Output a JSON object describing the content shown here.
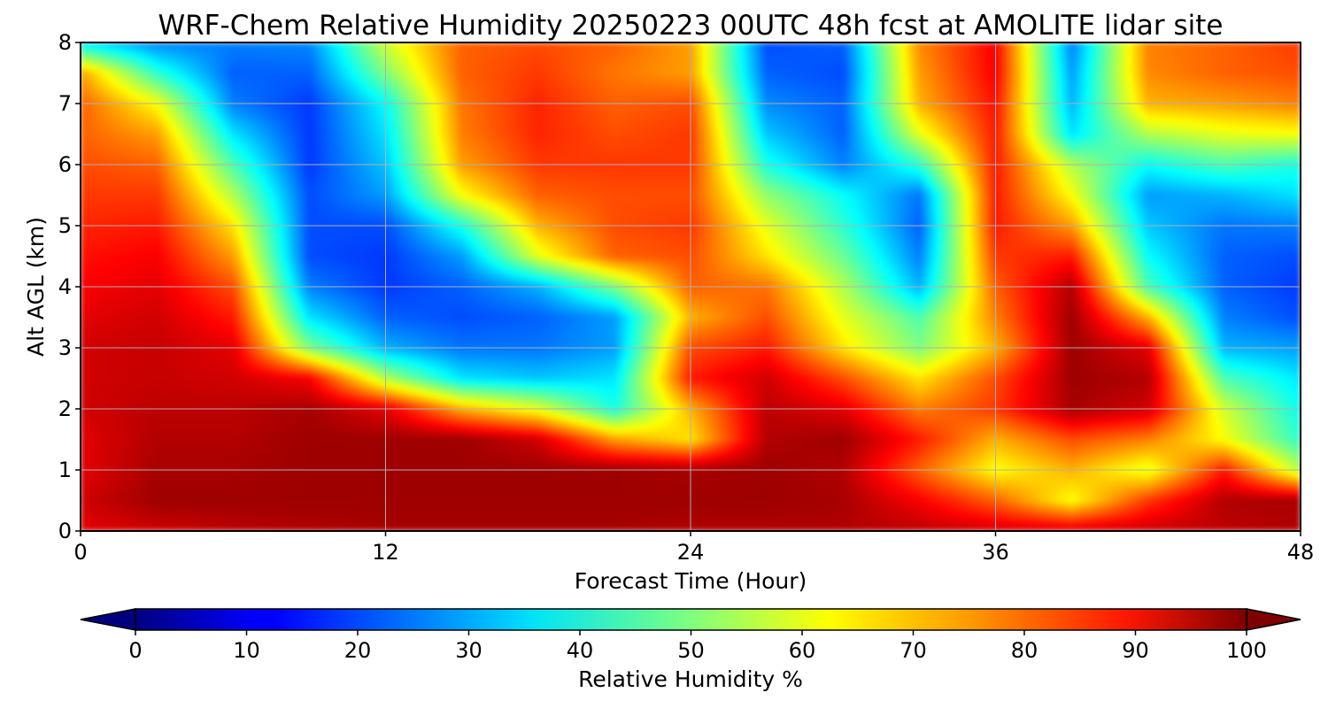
{
  "chart_data": {
    "type": "heatmap",
    "title": "WRF-Chem Relative Humidity 20250223 00UTC 48h fcst at AMOLITE lidar site",
    "xlabel": "Forecast Time (Hour)",
    "ylabel": "Alt AGL (km)",
    "xlim": [
      0,
      48
    ],
    "ylim": [
      0,
      8
    ],
    "xticks": [
      0,
      12,
      24,
      36,
      48
    ],
    "yticks": [
      0,
      1,
      2,
      3,
      4,
      5,
      6,
      7,
      8
    ],
    "grid": true,
    "x": [
      0,
      3,
      6,
      9,
      12,
      15,
      18,
      21,
      24,
      27,
      30,
      33,
      36,
      39,
      42,
      45,
      48
    ],
    "y": [
      0,
      0.5,
      1,
      1.5,
      2,
      2.5,
      3,
      3.5,
      4,
      4.5,
      5,
      5.5,
      6,
      6.5,
      7,
      7.5,
      8
    ],
    "z": [
      [
        90,
        92,
        94,
        95,
        96,
        96,
        96,
        96,
        95,
        95,
        95,
        94,
        92,
        92,
        93,
        94,
        95
      ],
      [
        92,
        97,
        97,
        97,
        97,
        97,
        97,
        97,
        97,
        97,
        96,
        88,
        78,
        62,
        82,
        95,
        96
      ],
      [
        90,
        96,
        96,
        97,
        97,
        97,
        97,
        97,
        96,
        97,
        95,
        78,
        62,
        70,
        60,
        85,
        55
      ],
      [
        90,
        95,
        95,
        97,
        97,
        97,
        92,
        72,
        65,
        95,
        97,
        85,
        70,
        80,
        75,
        62,
        42
      ],
      [
        92,
        94,
        94,
        96,
        90,
        70,
        60,
        40,
        70,
        94,
        90,
        75,
        82,
        96,
        92,
        58,
        38
      ],
      [
        92,
        93,
        92,
        88,
        55,
        35,
        32,
        35,
        85,
        92,
        80,
        65,
        80,
        97,
        95,
        45,
        35
      ],
      [
        92,
        93,
        90,
        50,
        30,
        24,
        24,
        28,
        80,
        85,
        65,
        50,
        70,
        97,
        90,
        30,
        28
      ],
      [
        90,
        92,
        85,
        35,
        22,
        20,
        22,
        28,
        70,
        80,
        60,
        45,
        75,
        97,
        70,
        25,
        20
      ],
      [
        88,
        90,
        80,
        25,
        18,
        22,
        30,
        50,
        78,
        76,
        55,
        30,
        78,
        95,
        45,
        22,
        18
      ],
      [
        86,
        88,
        72,
        20,
        18,
        28,
        60,
        78,
        80,
        65,
        48,
        25,
        82,
        85,
        38,
        22,
        20
      ],
      [
        84,
        85,
        65,
        20,
        20,
        40,
        70,
        80,
        82,
        60,
        42,
        22,
        85,
        72,
        32,
        24,
        25
      ],
      [
        82,
        82,
        55,
        20,
        28,
        62,
        78,
        80,
        80,
        52,
        38,
        24,
        85,
        62,
        28,
        30,
        35
      ],
      [
        80,
        78,
        45,
        18,
        32,
        72,
        82,
        82,
        82,
        40,
        25,
        42,
        85,
        55,
        38,
        45,
        40
      ],
      [
        78,
        72,
        35,
        18,
        35,
        75,
        84,
        80,
        82,
        32,
        22,
        60,
        85,
        35,
        55,
        60,
        62
      ],
      [
        78,
        62,
        25,
        18,
        38,
        76,
        84,
        78,
        80,
        26,
        22,
        70,
        86,
        30,
        70,
        72,
        75
      ],
      [
        72,
        42,
        22,
        22,
        50,
        78,
        82,
        76,
        72,
        22,
        20,
        72,
        88,
        28,
        74,
        78,
        80
      ],
      [
        35,
        25,
        25,
        26,
        58,
        78,
        80,
        78,
        72,
        20,
        22,
        74,
        88,
        25,
        75,
        78,
        82
      ]
    ],
    "colorbar": {
      "label": "Relative Humidity %",
      "ticks": [
        0,
        10,
        20,
        30,
        40,
        50,
        60,
        70,
        80,
        90,
        100
      ],
      "range": [
        0,
        100
      ],
      "extend": "both",
      "colormap": "jet"
    }
  }
}
